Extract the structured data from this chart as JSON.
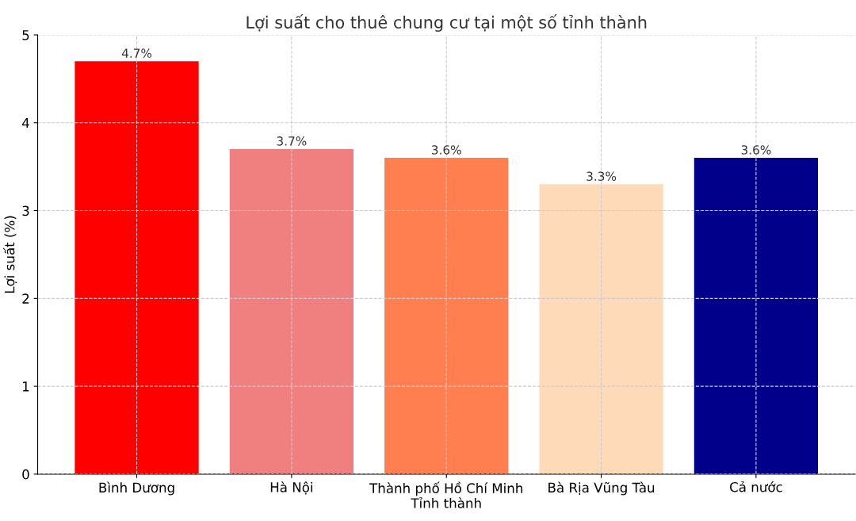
{
  "chart_data": {
    "type": "bar",
    "title": "Lợi suất cho thuê chung cư tại một số tỉnh thành",
    "xlabel": "Tỉnh thành",
    "ylabel": "Lợi suất (%)",
    "categories": [
      "Bình Dương",
      "Hà Nội",
      "Thành phố Hồ Chí Minh",
      "Bà Rịa Vũng Tàu",
      "Cả nước"
    ],
    "values": [
      4.7,
      3.7,
      3.6,
      3.3,
      3.6
    ],
    "colors": [
      "#ff0000",
      "#f08080",
      "#ff7f50",
      "#ffdab9",
      "#00008b"
    ],
    "value_labels": [
      "4.7%",
      "3.7%",
      "3.6%",
      "3.3%",
      "3.6%"
    ],
    "ylim": [
      0,
      5
    ],
    "yticks": [
      0,
      1,
      2,
      3,
      4,
      5
    ],
    "grid": true
  }
}
